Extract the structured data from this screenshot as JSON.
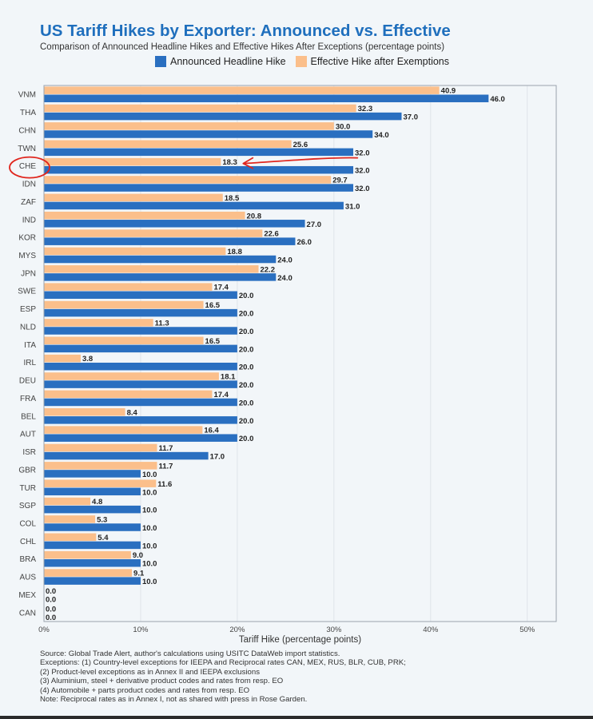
{
  "title": "US Tariff Hikes by Exporter: Announced vs. Effective",
  "subtitle": "Comparison of Announced Headline Hikes and Effective Hikes After Exceptions (percentage points)",
  "legend": {
    "announced": "Announced Headline Hike",
    "effective": "Effective Hike after Exemptions"
  },
  "colors": {
    "announced": "#2a6fc0",
    "effective": "#fbbf8b",
    "title": "#1f6fbd",
    "annotation": "#e0261e"
  },
  "notes": [
    "Source: Global Trade Alert, author's calculations using USITC DataWeb import statistics.",
    "Exceptions: (1) Country-level exceptions for IEEPA and Reciprocal rates CAN, MEX, RUS, BLR, CUB, PRK;",
    "(2) Product-level exceptions as in Annex II and IEEPA exclusions",
    "(3) Aluminium, steel + derivative product codes and rates from resp. EO",
    "(4) Automobile + parts product codes and rates from resp. EO",
    "Note: Reciprocal rates as in Annex I, not as shared with press in Rose Garden."
  ],
  "chart_data": {
    "type": "bar",
    "orientation": "horizontal",
    "categories": [
      "VNM",
      "THA",
      "CHN",
      "TWN",
      "CHE",
      "IDN",
      "ZAF",
      "IND",
      "KOR",
      "MYS",
      "JPN",
      "SWE",
      "ESP",
      "NLD",
      "ITA",
      "IRL",
      "DEU",
      "FRA",
      "BEL",
      "AUT",
      "ISR",
      "GBR",
      "TUR",
      "SGP",
      "COL",
      "CHL",
      "BRA",
      "AUS",
      "MEX",
      "CAN"
    ],
    "series": [
      {
        "name": "Effective Hike after Exemptions",
        "values": [
          40.9,
          32.3,
          30.0,
          25.6,
          18.3,
          29.7,
          18.5,
          20.8,
          22.6,
          18.8,
          22.2,
          17.4,
          16.5,
          11.3,
          16.5,
          3.8,
          18.1,
          17.4,
          8.4,
          16.4,
          11.7,
          11.7,
          11.6,
          4.8,
          5.3,
          5.4,
          9.0,
          9.1,
          0.0,
          0.0
        ]
      },
      {
        "name": "Announced Headline Hike",
        "values": [
          46.0,
          37.0,
          34.0,
          32.0,
          32.0,
          32.0,
          31.0,
          27.0,
          26.0,
          24.0,
          24.0,
          20.0,
          20.0,
          20.0,
          20.0,
          20.0,
          20.0,
          20.0,
          20.0,
          20.0,
          17.0,
          10.0,
          10.0,
          10.0,
          10.0,
          10.0,
          10.0,
          10.0,
          0.0,
          0.0
        ]
      }
    ],
    "xlabel": "Tariff Hike (percentage points)",
    "ylabel": "",
    "xlim": [
      0,
      53
    ],
    "xticks": [
      0,
      10,
      20,
      30,
      40,
      50
    ],
    "xtick_labels": [
      "0%",
      "10%",
      "20%",
      "30%",
      "40%",
      "50%"
    ],
    "grid": "vertical",
    "legend_position": "top-center",
    "highlighted_category": "CHE"
  }
}
